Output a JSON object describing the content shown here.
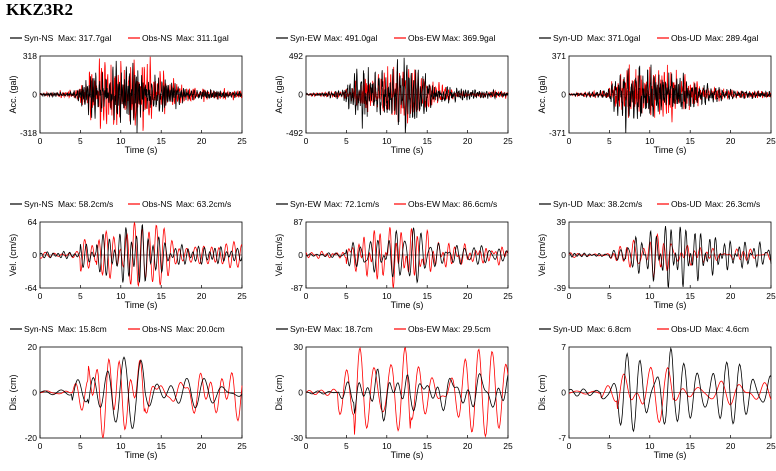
{
  "page_title": "KKZ3R2",
  "colors": {
    "syn": "#000000",
    "obs": "#ff0000"
  },
  "chart_data": [
    {
      "type": "line",
      "row": 0,
      "col": 0,
      "ylabel": "Acc. (gal)",
      "xlabel": "Time (s)",
      "xlim": [
        0,
        25
      ],
      "ylim": [
        -318,
        318
      ],
      "xticks": [
        "0",
        "5",
        "10",
        "15",
        "20",
        "25"
      ],
      "yticks": [
        "318",
        "0",
        "-318"
      ],
      "series": [
        {
          "name": "Syn-NS",
          "max_label": "Max: 317.7gal",
          "max": 317.7
        },
        {
          "name": "Obs-NS",
          "max_label": "Max: 311.1gal",
          "max": 311.1
        }
      ]
    },
    {
      "type": "line",
      "row": 0,
      "col": 1,
      "ylabel": "Acc. (gal)",
      "xlabel": "Time (s)",
      "xlim": [
        0,
        25
      ],
      "ylim": [
        -492,
        492
      ],
      "xticks": [
        "0",
        "5",
        "10",
        "15",
        "20",
        "25"
      ],
      "yticks": [
        "492",
        "0",
        "-492"
      ],
      "series": [
        {
          "name": "Syn-EW",
          "max_label": "Max: 491.0gal",
          "max": 491.0
        },
        {
          "name": "Obs-EW",
          "max_label": "Max: 369.9gal",
          "max": 369.9
        }
      ]
    },
    {
      "type": "line",
      "row": 0,
      "col": 2,
      "ylabel": "Acc. (gal)",
      "xlabel": "Time (s)",
      "xlim": [
        0,
        25
      ],
      "ylim": [
        -371,
        371
      ],
      "xticks": [
        "0",
        "5",
        "10",
        "15",
        "20",
        "25"
      ],
      "yticks": [
        "371",
        "0",
        "-371"
      ],
      "series": [
        {
          "name": "Syn-UD",
          "max_label": "Max: 371.0gal",
          "max": 371.0
        },
        {
          "name": "Obs-UD",
          "max_label": "Max: 289.4gal",
          "max": 289.4
        }
      ]
    },
    {
      "type": "line",
      "row": 1,
      "col": 0,
      "ylabel": "Vel. (cm/s)",
      "xlabel": "Time (s)",
      "xlim": [
        0,
        25
      ],
      "ylim": [
        -64,
        64
      ],
      "xticks": [
        "0",
        "5",
        "10",
        "15",
        "20",
        "25"
      ],
      "yticks": [
        "64",
        "0",
        "-64"
      ],
      "series": [
        {
          "name": "Syn-NS",
          "max_label": "Max: 58.2cm/s",
          "max": 58.2
        },
        {
          "name": "Obs-NS",
          "max_label": "Max: 63.2cm/s",
          "max": 63.2
        }
      ]
    },
    {
      "type": "line",
      "row": 1,
      "col": 1,
      "ylabel": "Vel. (cm/s)",
      "xlabel": "Time (s)",
      "xlim": [
        0,
        25
      ],
      "ylim": [
        -87,
        87
      ],
      "xticks": [
        "0",
        "5",
        "10",
        "15",
        "20",
        "25"
      ],
      "yticks": [
        "87",
        "0",
        "-87"
      ],
      "series": [
        {
          "name": "Syn-EW",
          "max_label": "Max: 72.1cm/s",
          "max": 72.1
        },
        {
          "name": "Obs-EW",
          "max_label": "Max: 86.6cm/s",
          "max": 86.6
        }
      ]
    },
    {
      "type": "line",
      "row": 1,
      "col": 2,
      "ylabel": "Vel. (cm/s)",
      "xlabel": "Time (s)",
      "xlim": [
        0,
        25
      ],
      "ylim": [
        -39,
        39
      ],
      "xticks": [
        "0",
        "5",
        "10",
        "15",
        "20",
        "25"
      ],
      "yticks": [
        "39",
        "0",
        "-39"
      ],
      "series": [
        {
          "name": "Syn-UD",
          "max_label": "Max: 38.2cm/s",
          "max": 38.2
        },
        {
          "name": "Obs-UD",
          "max_label": "Max: 26.3cm/s",
          "max": 26.3
        }
      ]
    },
    {
      "type": "line",
      "row": 2,
      "col": 0,
      "ylabel": "Dis. (cm)",
      "xlabel": "Time (s)",
      "xlim": [
        0,
        25
      ],
      "ylim": [
        -20,
        20
      ],
      "xticks": [
        "0",
        "5",
        "10",
        "15",
        "20",
        "25"
      ],
      "yticks": [
        "20",
        "0",
        "-20"
      ],
      "series": [
        {
          "name": "Syn-NS",
          "max_label": "Max: 15.8cm",
          "max": 15.8
        },
        {
          "name": "Obs-NS",
          "max_label": "Max: 20.0cm",
          "max": 20.0
        }
      ]
    },
    {
      "type": "line",
      "row": 2,
      "col": 1,
      "ylabel": "Dis. (cm)",
      "xlabel": "Time (s)",
      "xlim": [
        0,
        25
      ],
      "ylim": [
        -30,
        30
      ],
      "xticks": [
        "0",
        "5",
        "10",
        "15",
        "20",
        "25"
      ],
      "yticks": [
        "30",
        "0",
        "-30"
      ],
      "series": [
        {
          "name": "Syn-EW",
          "max_label": "Max: 18.7cm",
          "max": 18.7
        },
        {
          "name": "Obs-EW",
          "max_label": "Max: 29.5cm",
          "max": 29.5
        }
      ]
    },
    {
      "type": "line",
      "row": 2,
      "col": 2,
      "ylabel": "Dis. (cm)",
      "xlabel": "Time (s)",
      "xlim": [
        0,
        25
      ],
      "ylim": [
        -7,
        7
      ],
      "xticks": [
        "0",
        "5",
        "10",
        "15",
        "20",
        "25"
      ],
      "yticks": [
        "7",
        "0",
        "-7"
      ],
      "series": [
        {
          "name": "Syn-UD",
          "max_label": "Max: 6.8cm",
          "max": 6.8
        },
        {
          "name": "Obs-UD",
          "max_label": "Max: 4.6cm",
          "max": 4.6
        }
      ]
    }
  ]
}
